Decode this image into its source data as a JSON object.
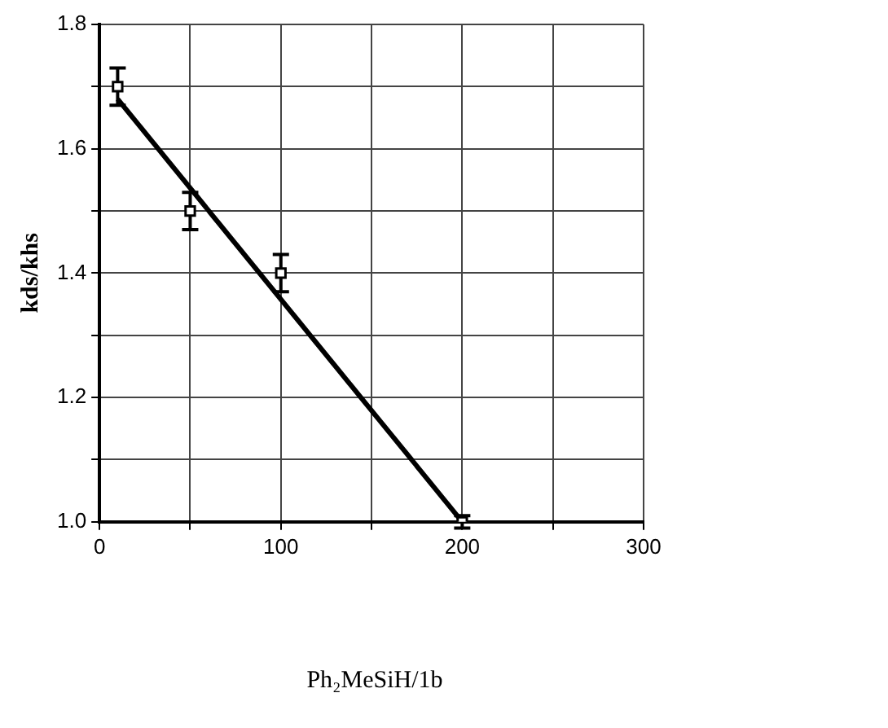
{
  "chart_data": {
    "type": "scatter",
    "xlabel": "Ph₂MeSiH/1b",
    "ylabel": "kds/khs",
    "xlim": [
      0,
      300
    ],
    "ylim": [
      1.0,
      1.8
    ],
    "xticks": [
      0,
      {
        "value": 50,
        "label": null
      },
      100,
      {
        "value": 150,
        "label": null
      },
      200,
      {
        "value": 250,
        "label": null
      },
      300
    ],
    "yticks": [
      {
        "value": 1.0,
        "label": "1.0"
      },
      {
        "value": 1.1,
        "label": null
      },
      {
        "value": 1.2,
        "label": "1.2"
      },
      {
        "value": 1.3,
        "label": null
      },
      {
        "value": 1.4,
        "label": "1.4"
      },
      {
        "value": 1.5,
        "label": null
      },
      {
        "value": 1.6,
        "label": "1.6"
      },
      {
        "value": 1.7,
        "label": null
      },
      {
        "value": 1.8,
        "label": "1.8"
      }
    ],
    "grid": true,
    "legend": false,
    "series": [
      {
        "marker": "square",
        "color": "#000000",
        "x": [
          10,
          50,
          100,
          200
        ],
        "values": [
          1.7,
          1.5,
          1.4,
          1.0
        ],
        "errors": [
          0.03,
          0.03,
          0.03,
          0.01
        ]
      },
      {
        "type": "line",
        "color": "#000000",
        "x": [
          10,
          200
        ],
        "values": [
          1.68,
          1.0
        ],
        "line_style": "solid"
      }
    ]
  }
}
